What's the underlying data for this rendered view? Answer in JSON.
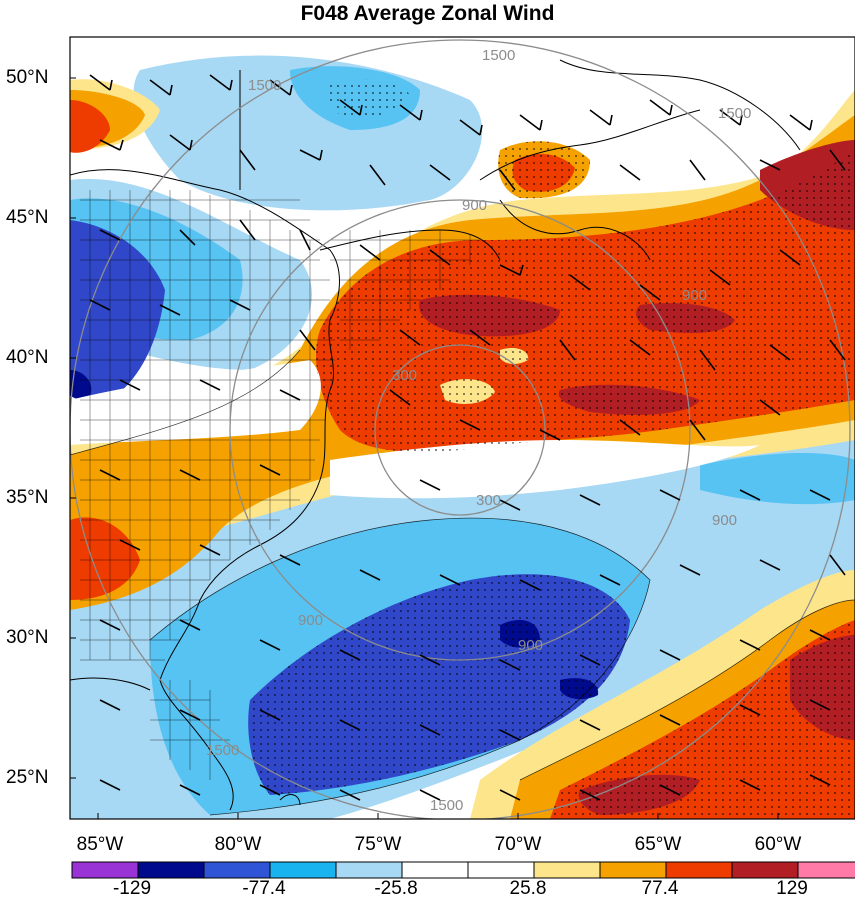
{
  "title": "F048 Average Zonal Wind",
  "lat_labels": [
    "50°N",
    "45°N",
    "40°N",
    "35°N",
    "30°N",
    "25°N"
  ],
  "lon_labels": [
    "85°W",
    "80°W",
    "75°W",
    "70°W",
    "65°W",
    "60°W"
  ],
  "colorbar": {
    "labels": [
      "-129",
      "-77.4",
      "-25.8",
      "25.8",
      "77.4",
      "129"
    ],
    "colors": [
      "#9a33d6",
      "#000a8c",
      "#2f55d6",
      "#19b4f0",
      "#a7d8f4",
      "#ffffff",
      "#ffffff",
      "#fde58c",
      "#f5a200",
      "#ee3b00",
      "#b11e24",
      "#ff7aa7"
    ]
  },
  "contour_labels": [
    "1500",
    "1500",
    "1500",
    "900",
    "900",
    "900",
    "900",
    "300",
    "300",
    "900",
    "1500",
    "1500"
  ],
  "palette": {
    "dark_blue": "#2f47c8",
    "mid_blue": "#3c8fe6",
    "light_blue": "#a7d8f4",
    "cyan": "#57c3f2",
    "yellow": "#fde58c",
    "orange": "#f5a200",
    "red_orange": "#ee3b00",
    "dark_red": "#b11e24"
  }
}
